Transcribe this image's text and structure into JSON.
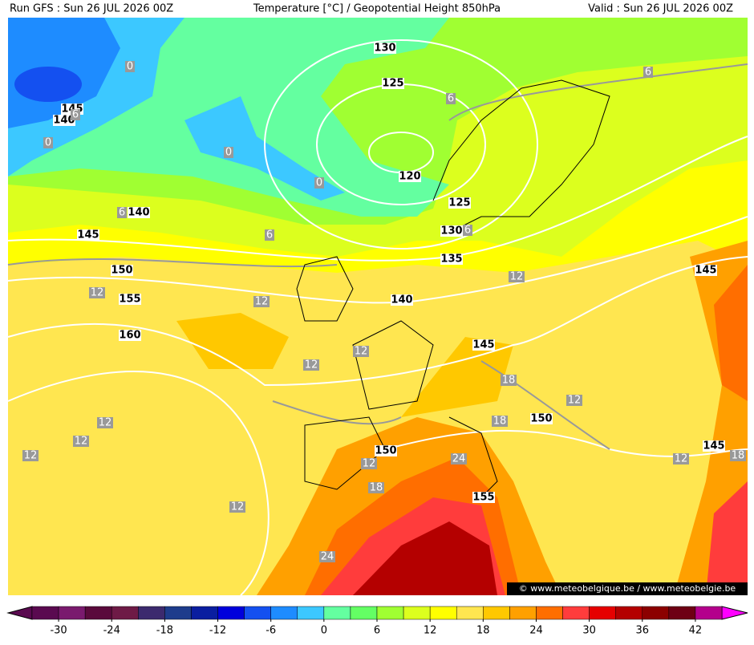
{
  "header": {
    "run": "Run GFS : Sun 26 JUL 2026 00Z",
    "title": "Temperature [°C] / Geopotential Height 850hPa",
    "valid": "Valid : Sun 26 JUL 2026 00Z"
  },
  "height_labels": [
    "130",
    "125",
    "120",
    "125",
    "130",
    "135",
    "140",
    "145",
    "150",
    "150",
    "155",
    "145",
    "145",
    "160",
    "155",
    "150",
    "145",
    "140",
    "145",
    "140"
  ],
  "temperature_labels": [
    "0",
    "0",
    "0",
    "0",
    "6",
    "6",
    "6",
    "6",
    "6",
    "6",
    "12",
    "12",
    "12",
    "12",
    "12",
    "12",
    "12",
    "12",
    "12",
    "12",
    "12",
    "12",
    "18",
    "18",
    "18",
    "18",
    "24",
    "24"
  ],
  "watermark": "© www.meteobelgique.be / www.meteobelgie.be",
  "colorbar": {
    "bounds": [
      -33,
      -30,
      -27,
      -24,
      -21,
      -18,
      -15,
      -12,
      -9,
      -6,
      -3,
      0,
      3,
      6,
      9,
      12,
      15,
      18,
      21,
      24,
      27,
      30,
      33,
      36,
      39,
      42,
      45
    ],
    "colors": [
      "#5a0a50",
      "#7a1a6e",
      "#5a0a3c",
      "#6e1a46",
      "#3c2a6e",
      "#1e3c8c",
      "#0a1ea0",
      "#0000dc",
      "#1450f0",
      "#1e8cff",
      "#3cc8ff",
      "#64ffa0",
      "#64ff64",
      "#a0ff32",
      "#dcff1e",
      "#ffff00",
      "#ffe650",
      "#ffc800",
      "#ffa000",
      "#ff6e00",
      "#ff3c3c",
      "#e60000",
      "#b40000",
      "#8c0000",
      "#6e0014",
      "#b4008c"
    ],
    "ticks": [
      -30,
      -24,
      -18,
      -12,
      -6,
      0,
      6,
      12,
      18,
      24,
      30,
      36,
      42
    ]
  }
}
